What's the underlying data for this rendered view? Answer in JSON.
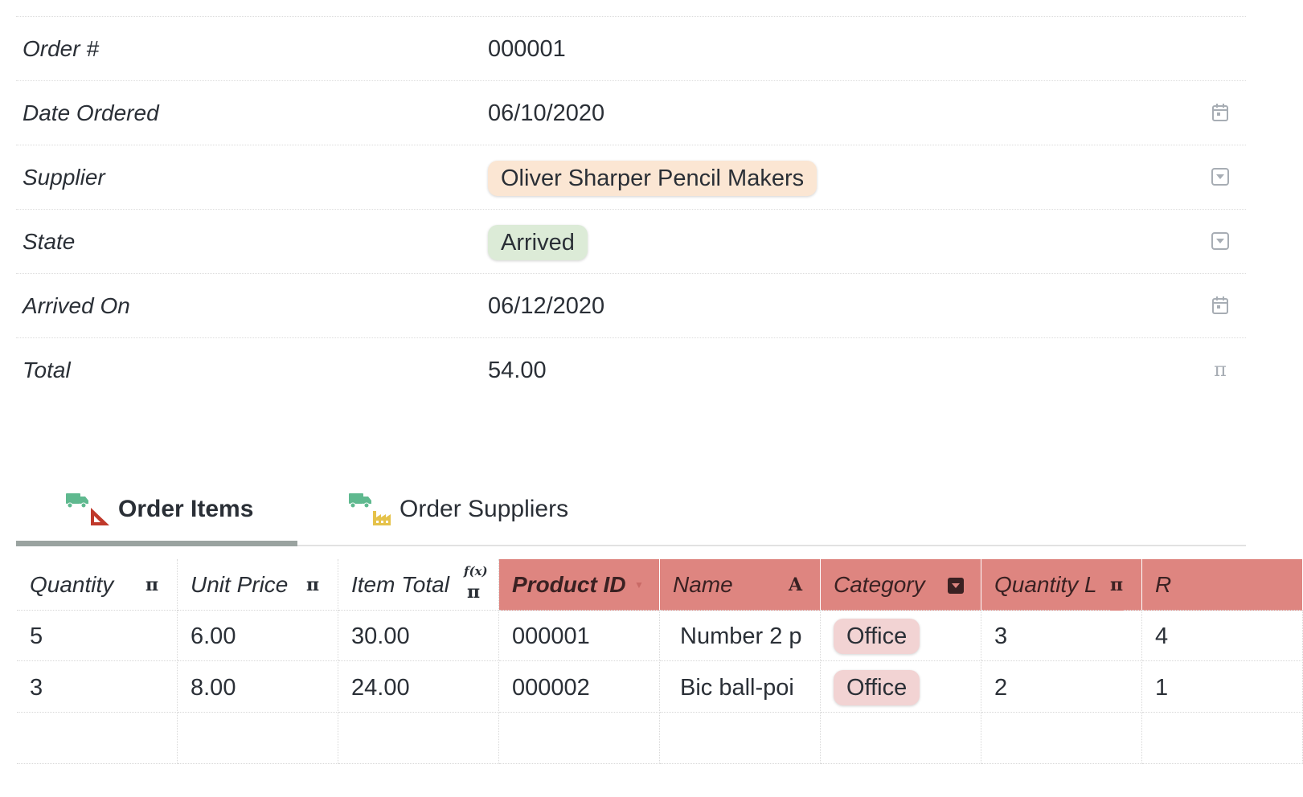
{
  "form": {
    "fields": [
      {
        "label": "Order #",
        "value": "000001",
        "icon": ""
      },
      {
        "label": "Date Ordered",
        "value": "06/10/2020",
        "icon": "calendar-icon"
      },
      {
        "label": "Supplier",
        "value": "Oliver Sharper Pencil Makers",
        "icon": "dropdown-icon",
        "pill_color": "#fbe6d3"
      },
      {
        "label": "State",
        "value": "Arrived",
        "icon": "dropdown-icon",
        "pill_color": "#dcebd7"
      },
      {
        "label": "Arrived On",
        "value": "06/12/2020",
        "icon": "calendar-icon"
      },
      {
        "label": "Total",
        "value": "54.00",
        "icon": "pi-icon"
      }
    ]
  },
  "tabs": [
    {
      "label": "Order Items",
      "active": true,
      "icons": [
        "truck-icon",
        "ruler-icon"
      ]
    },
    {
      "label": "Order Suppliers",
      "active": false,
      "icons": [
        "truck-icon",
        "factory-icon"
      ]
    }
  ],
  "colors": {
    "accent": "#de8580",
    "truck": "#5fb98f",
    "ruler": "#c0392b",
    "factory": "#e5c24a"
  },
  "grid": {
    "columns": [
      {
        "label": "Quantity",
        "icon": "π"
      },
      {
        "label": "Unit Price",
        "icon": "π"
      },
      {
        "label": "Item Total",
        "icon": "f(x) π"
      },
      {
        "label": "Product ID",
        "icon": "sort-icon"
      },
      {
        "label": "Name",
        "icon": "A"
      },
      {
        "label": "Category",
        "icon": "dropdown-icon"
      },
      {
        "label": "Quantity L",
        "icon": "π"
      },
      {
        "label": "R",
        "icon": ""
      }
    ],
    "rows": [
      [
        "5",
        "6.00",
        "30.00",
        "000001",
        "Number 2 p",
        "Office",
        "3",
        "4"
      ],
      [
        "3",
        "8.00",
        "24.00",
        "000002",
        "Bic ball-poi",
        "Office",
        "2",
        "1"
      ]
    ]
  }
}
